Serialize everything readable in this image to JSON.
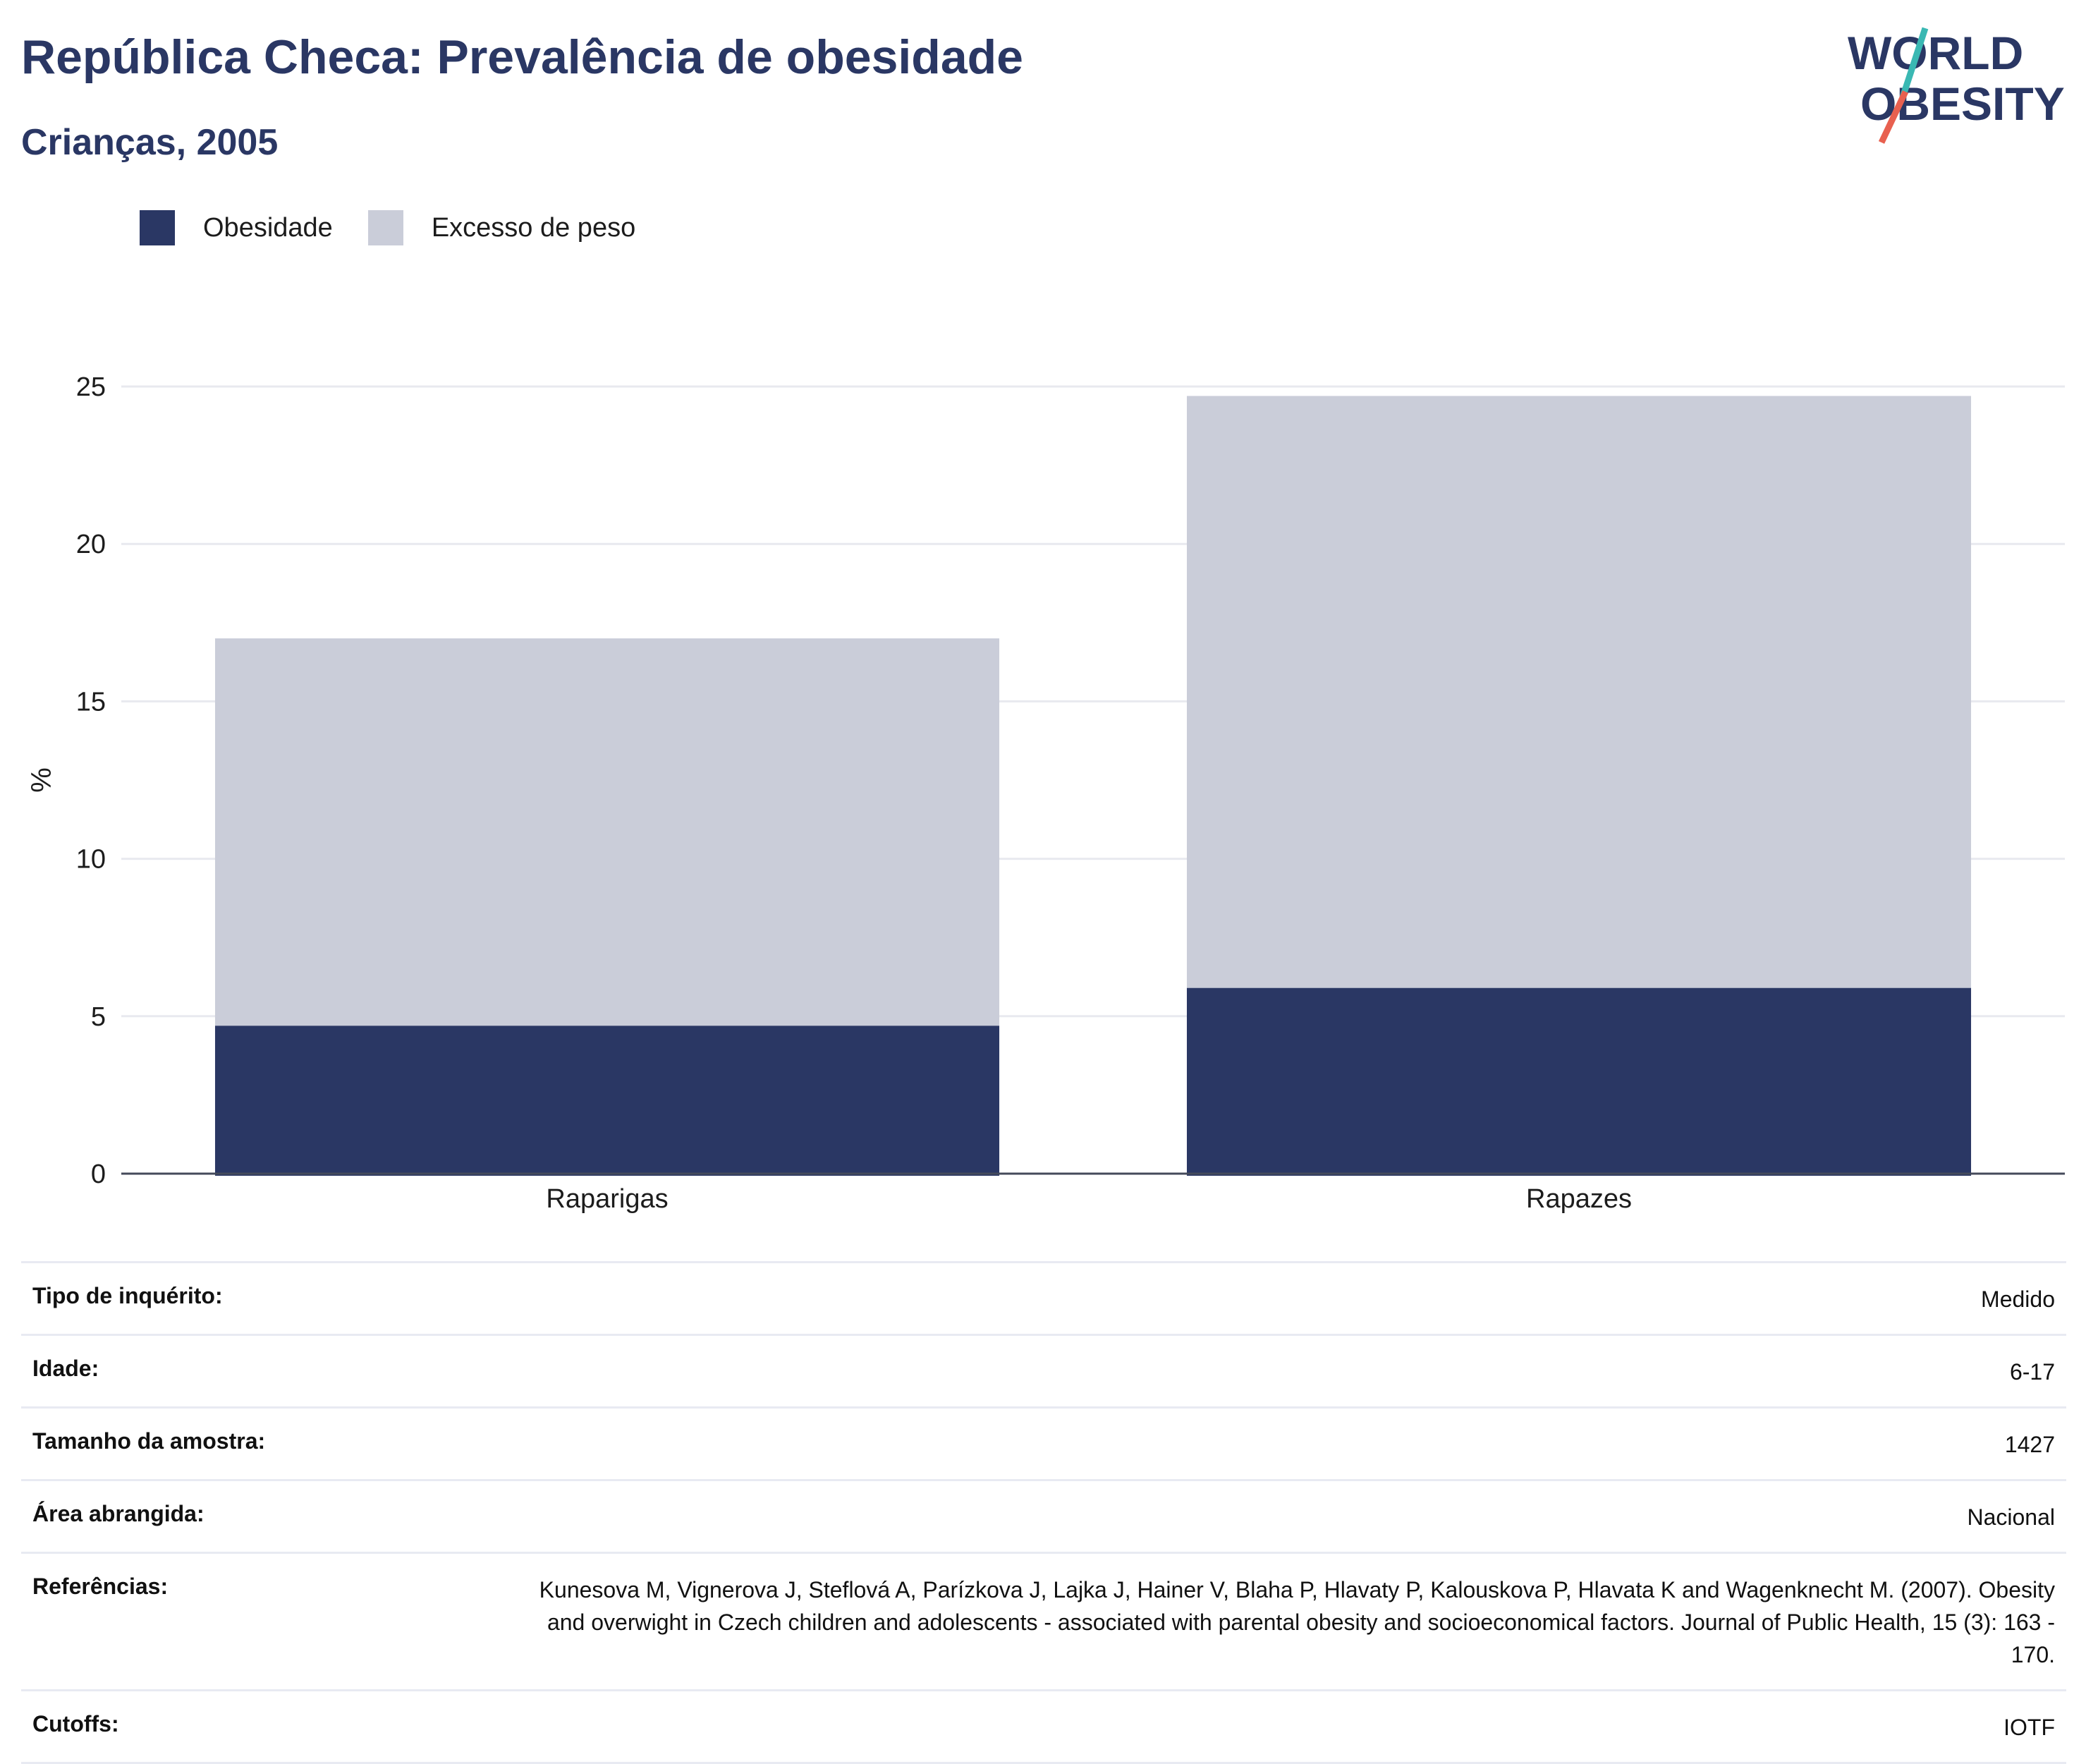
{
  "header": {
    "title": "República Checa: Prevalência de obesidade",
    "subtitle": "Crianças, 2005"
  },
  "logo": {
    "line1": "WORLD",
    "line2": "OBESITY"
  },
  "colors": {
    "obesity": "#2a3764",
    "overweight": "#cacdd9",
    "title": "#2a3764",
    "logo_teal": "#3ab8b3",
    "logo_red": "#e8604f"
  },
  "legend": [
    {
      "label": "Obesidade",
      "color": "#2a3764"
    },
    {
      "label": "Excesso de peso",
      "color": "#cacdd9"
    }
  ],
  "chart_data": {
    "type": "bar",
    "stacked": true,
    "categories": [
      "Raparigas",
      "Rapazes"
    ],
    "series": [
      {
        "name": "Obesidade",
        "values": [
          4.7,
          5.9
        ]
      },
      {
        "name": "Excesso de peso",
        "values": [
          12.3,
          18.8
        ]
      }
    ],
    "ylabel": "%",
    "ylim": [
      0,
      25
    ],
    "yticks": [
      0,
      5,
      10,
      15,
      20,
      25
    ],
    "grid": true,
    "legend_position": "top-left"
  },
  "metadata": [
    {
      "label": "Tipo de inquérito:",
      "value": "Medido"
    },
    {
      "label": "Idade:",
      "value": "6-17"
    },
    {
      "label": "Tamanho da amostra:",
      "value": "1427"
    },
    {
      "label": "Área abrangida:",
      "value": "Nacional"
    },
    {
      "label": "Referências:",
      "value": "Kunesova M, Vignerova J, Steflová A, Parízkova J, Lajka J, Hainer V, Blaha P, Hlavaty P, Kalouskova P, Hlavata K and Wagenknecht M. (2007). Obesity and overwight in Czech children and adolescents - associated with parental obesity and socioeconomical factors. Journal of Public Health, 15 (3): 163 - 170."
    },
    {
      "label": "Cutoffs:",
      "value": "IOTF"
    }
  ]
}
